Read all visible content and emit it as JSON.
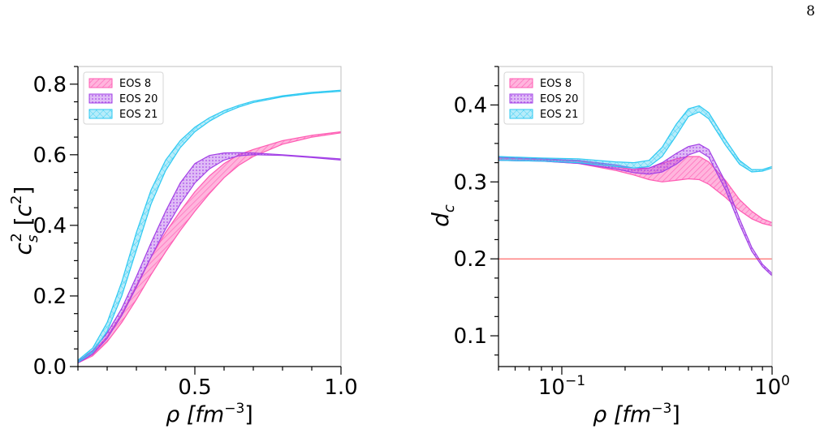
{
  "page_number": "8",
  "colors": {
    "eos8": "#ff5bb3",
    "eos20": "#a23fe6",
    "eos21": "#2ec9f2",
    "hline": "#ff2a2a"
  },
  "chart_data": [
    {
      "type": "line",
      "xlabel_main": "ρ [fm",
      "xlabel_sup": "−3",
      "xlabel_end": "]",
      "ylabel": "c_s^2 [c^2]",
      "xlim": [
        0.1,
        1.0
      ],
      "ylim": [
        0.0,
        0.85
      ],
      "xticks": [
        0.5,
        1.0
      ],
      "xtick_labels": [
        "0.5",
        "1.0"
      ],
      "yticks": [
        0.0,
        0.2,
        0.4,
        0.6,
        0.8
      ],
      "ytick_labels": [
        "0.0",
        "0.2",
        "0.4",
        "0.6",
        "0.8"
      ],
      "legend": {
        "position": "top-left",
        "entries": [
          "EOS 8",
          "EOS 20",
          "EOS 21"
        ]
      },
      "series": [
        {
          "name": "EOS 8",
          "color": "#ff5bb3",
          "x": [
            0.1,
            0.15,
            0.2,
            0.25,
            0.3,
            0.35,
            0.4,
            0.45,
            0.5,
            0.55,
            0.6,
            0.65,
            0.7,
            0.8,
            0.9,
            1.0
          ],
          "lower": [
            0.01,
            0.03,
            0.07,
            0.125,
            0.19,
            0.26,
            0.325,
            0.385,
            0.44,
            0.49,
            0.535,
            0.57,
            0.595,
            0.63,
            0.65,
            0.662
          ],
          "upper": [
            0.015,
            0.04,
            0.085,
            0.15,
            0.23,
            0.31,
            0.38,
            0.44,
            0.495,
            0.54,
            0.575,
            0.6,
            0.615,
            0.64,
            0.655,
            0.665
          ]
        },
        {
          "name": "EOS 20",
          "color": "#a23fe6",
          "x": [
            0.1,
            0.15,
            0.2,
            0.25,
            0.3,
            0.35,
            0.4,
            0.45,
            0.5,
            0.55,
            0.6,
            0.65,
            0.7,
            0.8,
            0.9,
            1.0
          ],
          "lower": [
            0.01,
            0.035,
            0.08,
            0.145,
            0.225,
            0.31,
            0.39,
            0.46,
            0.52,
            0.56,
            0.585,
            0.597,
            0.6,
            0.598,
            0.592,
            0.585
          ],
          "upper": [
            0.015,
            0.045,
            0.095,
            0.165,
            0.255,
            0.35,
            0.44,
            0.52,
            0.575,
            0.598,
            0.605,
            0.606,
            0.605,
            0.6,
            0.594,
            0.588
          ]
        },
        {
          "name": "EOS 21",
          "color": "#2ec9f2",
          "x": [
            0.1,
            0.15,
            0.2,
            0.25,
            0.3,
            0.35,
            0.4,
            0.45,
            0.5,
            0.55,
            0.6,
            0.65,
            0.7,
            0.8,
            0.9,
            1.0
          ],
          "lower": [
            0.012,
            0.04,
            0.1,
            0.2,
            0.33,
            0.46,
            0.555,
            0.62,
            0.665,
            0.695,
            0.718,
            0.735,
            0.748,
            0.764,
            0.774,
            0.78
          ],
          "upper": [
            0.018,
            0.052,
            0.125,
            0.24,
            0.38,
            0.5,
            0.585,
            0.64,
            0.678,
            0.705,
            0.725,
            0.74,
            0.752,
            0.767,
            0.777,
            0.783
          ]
        }
      ]
    },
    {
      "type": "line",
      "xlabel_main": "ρ [fm",
      "xlabel_sup": "−3",
      "xlabel_end": "]",
      "ylabel": "d_c",
      "xscale": "log",
      "xlim": [
        0.05,
        1.0
      ],
      "ylim": [
        0.06,
        0.45
      ],
      "xtick_major": [
        0.1,
        1.0
      ],
      "xtick_labels": [
        {
          "base": "10",
          "exp": "−1"
        },
        {
          "base": "10",
          "exp": "0"
        }
      ],
      "yticks": [
        0.1,
        0.2,
        0.3,
        0.4
      ],
      "ytick_labels": [
        "0.1",
        "0.2",
        "0.3",
        "0.4"
      ],
      "hline": {
        "y": 0.2,
        "color": "#ff2a2a"
      },
      "legend": {
        "position": "top-left",
        "entries": [
          "EOS 8",
          "EOS 20",
          "EOS 21"
        ]
      },
      "series": [
        {
          "name": "EOS 8",
          "color": "#ff5bb3",
          "x": [
            0.05,
            0.08,
            0.12,
            0.18,
            0.22,
            0.26,
            0.3,
            0.35,
            0.4,
            0.45,
            0.5,
            0.6,
            0.7,
            0.8,
            0.9,
            1.0
          ],
          "lower": [
            0.328,
            0.327,
            0.324,
            0.315,
            0.309,
            0.303,
            0.3,
            0.302,
            0.304,
            0.303,
            0.297,
            0.28,
            0.263,
            0.252,
            0.246,
            0.243
          ],
          "upper": [
            0.331,
            0.329,
            0.327,
            0.32,
            0.316,
            0.318,
            0.324,
            0.33,
            0.333,
            0.333,
            0.326,
            0.302,
            0.277,
            0.262,
            0.252,
            0.247
          ]
        },
        {
          "name": "EOS 20",
          "color": "#a23fe6",
          "x": [
            0.05,
            0.08,
            0.12,
            0.18,
            0.22,
            0.26,
            0.3,
            0.35,
            0.4,
            0.45,
            0.5,
            0.6,
            0.7,
            0.8,
            0.9,
            1.0
          ],
          "lower": [
            0.328,
            0.327,
            0.324,
            0.317,
            0.312,
            0.31,
            0.313,
            0.323,
            0.335,
            0.34,
            0.332,
            0.29,
            0.245,
            0.21,
            0.19,
            0.178
          ],
          "upper": [
            0.332,
            0.33,
            0.328,
            0.322,
            0.318,
            0.318,
            0.325,
            0.337,
            0.346,
            0.349,
            0.342,
            0.3,
            0.252,
            0.215,
            0.193,
            0.181
          ]
        },
        {
          "name": "EOS 21",
          "color": "#2ec9f2",
          "x": [
            0.05,
            0.08,
            0.12,
            0.18,
            0.22,
            0.26,
            0.3,
            0.35,
            0.4,
            0.45,
            0.5,
            0.6,
            0.7,
            0.8,
            0.9,
            1.0
          ],
          "lower": [
            0.328,
            0.327,
            0.325,
            0.32,
            0.318,
            0.32,
            0.333,
            0.36,
            0.385,
            0.391,
            0.382,
            0.348,
            0.323,
            0.313,
            0.314,
            0.318
          ],
          "upper": [
            0.333,
            0.331,
            0.33,
            0.326,
            0.325,
            0.328,
            0.345,
            0.375,
            0.395,
            0.399,
            0.39,
            0.355,
            0.328,
            0.316,
            0.316,
            0.32
          ]
        }
      ]
    }
  ]
}
